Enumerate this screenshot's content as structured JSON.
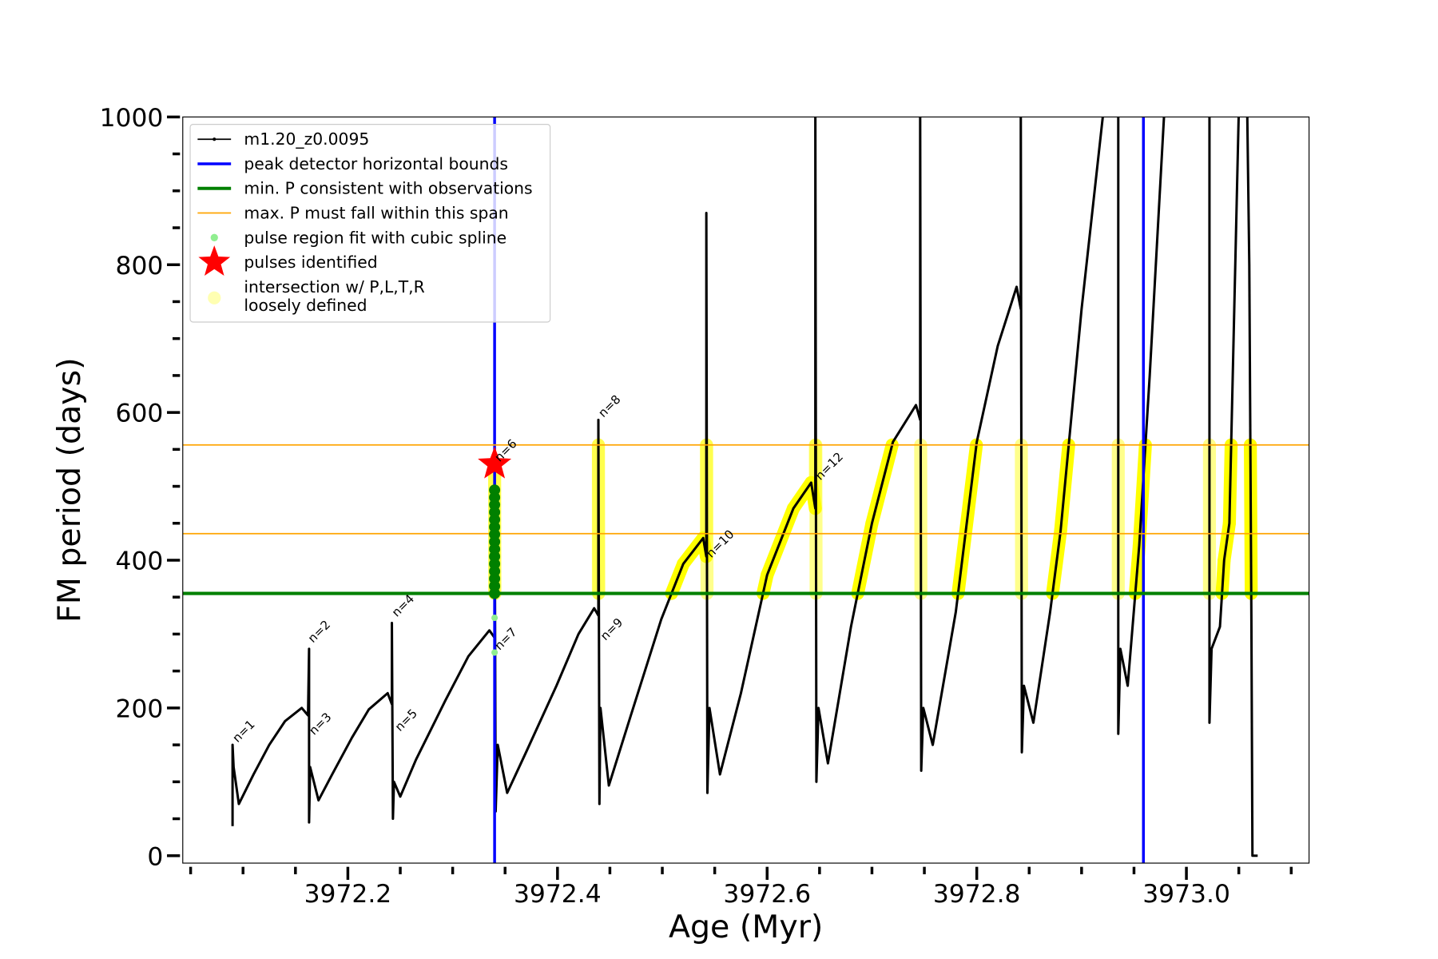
{
  "chart_data": {
    "type": "line",
    "xlabel": "Age (Myr)",
    "ylabel": "FM period (days)",
    "xlim": [
      3972.0425,
      3973.117
    ],
    "ylim": [
      0,
      1000
    ],
    "x_ticks": [
      3972.2,
      3972.4,
      3972.6,
      3972.8,
      3973.0
    ],
    "x_tick_labels": [
      "3972.2",
      "3972.4",
      "3972.6",
      "3972.8",
      "3973.0"
    ],
    "x_minor_step": 0.05,
    "y_ticks": [
      0,
      200,
      400,
      600,
      800,
      1000
    ],
    "y_tick_labels": [
      "0",
      "200",
      "400",
      "600",
      "800",
      "1000"
    ],
    "y_minor_step": 50,
    "grid": false,
    "legend_position": "top-left",
    "colors": {
      "track": "#000000",
      "peak_bounds": "#0000ff",
      "min_p": "#008000",
      "max_p": "#ffa500",
      "spline": "#90ee90",
      "spline_dark": "#008000",
      "pulse": "#ff0000",
      "intersection": "#ffff00"
    },
    "legend": [
      {
        "label": "m1.20_z0.0095",
        "kind": "track"
      },
      {
        "label": "peak detector horizontal bounds",
        "kind": "peak_bounds"
      },
      {
        "label": "min. P consistent with observations",
        "kind": "min_p"
      },
      {
        "label": "max. P must fall within this span",
        "kind": "max_p"
      },
      {
        "label": "pulse region fit with cubic spline",
        "kind": "spline"
      },
      {
        "label": "pulses identified",
        "kind": "pulse"
      },
      {
        "label": "intersection w/ P,L,T,R",
        "label2": "loosely defined",
        "kind": "intersection"
      }
    ],
    "peak_detector_bounds": [
      3972.34,
      3972.959
    ],
    "min_period": 355,
    "max_period_span": [
      436,
      556
    ],
    "pulses_identified": [
      {
        "age": 3972.34,
        "period": 530
      }
    ],
    "spline_points": {
      "age": 3972.34,
      "periods": [
        355,
        365,
        375,
        385,
        395,
        405,
        415,
        425,
        435,
        445,
        455,
        465,
        475,
        485,
        495
      ],
      "pale_periods": [
        275,
        322
      ]
    },
    "series": [
      {
        "name": "m1.20_z0.0095",
        "segments": [
          [
            [
              3972.09,
              40
            ],
            [
              3972.09,
              150
            ],
            [
              3972.091,
              120
            ],
            [
              3972.096,
              70
            ],
            [
              3972.11,
              110
            ],
            [
              3972.125,
              150
            ],
            [
              3972.14,
              182
            ],
            [
              3972.156,
              200
            ],
            [
              3972.162,
              190
            ],
            [
              3972.163,
              280
            ],
            [
              3972.163,
              45
            ],
            [
              3972.164,
              120
            ],
            [
              3972.172,
              75
            ],
            [
              3972.185,
              110
            ],
            [
              3972.204,
              160
            ],
            [
              3972.22,
              198
            ],
            [
              3972.238,
              220
            ],
            [
              3972.242,
              205
            ],
            [
              3972.242,
              315
            ],
            [
              3972.243,
              50
            ],
            [
              3972.244,
              100
            ],
            [
              3972.25,
              80
            ],
            [
              3972.265,
              130
            ],
            [
              3972.293,
              210
            ],
            [
              3972.315,
              270
            ],
            [
              3972.335,
              305
            ],
            [
              3972.34,
              295
            ],
            [
              3972.34,
              530
            ],
            [
              3972.341,
              60
            ],
            [
              3972.343,
              150
            ],
            [
              3972.352,
              85
            ],
            [
              3972.37,
              140
            ],
            [
              3972.399,
              230
            ],
            [
              3972.42,
              300
            ],
            [
              3972.435,
              335
            ],
            [
              3972.439,
              325
            ],
            [
              3972.439,
              590
            ],
            [
              3972.44,
              70
            ],
            [
              3972.441,
              200
            ],
            [
              3972.449,
              95
            ],
            [
              3972.47,
              190
            ],
            [
              3972.499,
              320
            ],
            [
              3972.52,
              395
            ],
            [
              3972.539,
              430
            ],
            [
              3972.542,
              405
            ],
            [
              3972.542,
              870
            ],
            [
              3972.543,
              85
            ],
            [
              3972.545,
              200
            ],
            [
              3972.555,
              110
            ],
            [
              3972.575,
              220
            ],
            [
              3972.6,
              380
            ],
            [
              3972.625,
              470
            ],
            [
              3972.642,
              505
            ],
            [
              3972.646,
              470
            ],
            [
              3972.646,
              1010
            ],
            [
              3972.647,
              100
            ],
            [
              3972.649,
              200
            ],
            [
              3972.658,
              125
            ],
            [
              3972.68,
              310
            ],
            [
              3972.7,
              450
            ],
            [
              3972.72,
              560
            ],
            [
              3972.742,
              610
            ],
            [
              3972.746,
              590
            ],
            [
              3972.746,
              1010
            ],
            [
              3972.747,
              115
            ],
            [
              3972.749,
              200
            ],
            [
              3972.758,
              150
            ],
            [
              3972.78,
              330
            ],
            [
              3972.8,
              560
            ],
            [
              3972.82,
              690
            ],
            [
              3972.838,
              770
            ],
            [
              3972.842,
              740
            ],
            [
              3972.842,
              1010
            ],
            [
              3972.843,
              140
            ],
            [
              3972.845,
              230
            ],
            [
              3972.854,
              180
            ],
            [
              3972.87,
              330
            ],
            [
              3972.88,
              440
            ],
            [
              3972.9,
              740
            ],
            [
              3972.921,
              1010
            ]
          ],
          [
            [
              3972.935,
              1010
            ],
            [
              3972.935,
              165
            ],
            [
              3972.937,
              280
            ],
            [
              3972.944,
              230
            ],
            [
              3972.955,
              420
            ],
            [
              3972.965,
              650
            ],
            [
              3972.979,
              1010
            ]
          ],
          [
            [
              3973.022,
              1010
            ],
            [
              3973.022,
              180
            ],
            [
              3973.024,
              280
            ],
            [
              3973.032,
              310
            ],
            [
              3973.036,
              400
            ],
            [
              3973.041,
              450
            ],
            [
              3973.05,
              1010
            ]
          ],
          [
            [
              3973.058,
              1010
            ],
            [
              3973.06,
              800
            ],
            [
              3973.062,
              320
            ],
            [
              3973.063,
              0
            ],
            [
              3973.068,
              0
            ]
          ]
        ]
      }
    ],
    "annotations": [
      {
        "text": "n=1",
        "age": 3972.093,
        "period": 150
      },
      {
        "text": "n=2",
        "age": 3972.165,
        "period": 285
      },
      {
        "text": "n=3",
        "age": 3972.166,
        "period": 160
      },
      {
        "text": "n=4",
        "age": 3972.245,
        "period": 320
      },
      {
        "text": "n=5",
        "age": 3972.248,
        "period": 165
      },
      {
        "text": "n=6",
        "age": 3972.343,
        "period": 530
      },
      {
        "text": "n=7",
        "age": 3972.343,
        "period": 275
      },
      {
        "text": "n=8",
        "age": 3972.442,
        "period": 590
      },
      {
        "text": "n=9",
        "age": 3972.444,
        "period": 288
      },
      {
        "text": "n=10",
        "age": 3972.545,
        "period": 400
      },
      {
        "text": "n=12",
        "age": 3972.649,
        "period": 505
      }
    ]
  }
}
